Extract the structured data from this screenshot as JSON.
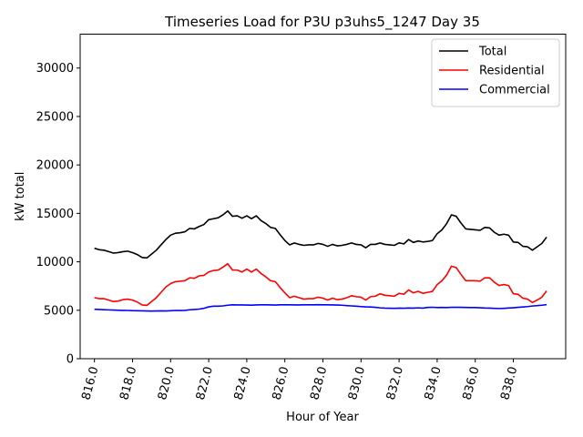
{
  "chart_data": {
    "type": "line",
    "title": "Timeseries Load for P3U p3uhs5_1247  Day 35",
    "xlabel": "Hour of Year",
    "ylabel": "kW total",
    "xlim": [
      815.25,
      840.75
    ],
    "ylim": [
      0,
      33500
    ],
    "xticks": [
      816,
      818,
      820,
      822,
      824,
      826,
      828,
      830,
      832,
      834,
      836,
      838
    ],
    "xtick_labels": [
      "816.0",
      "818.0",
      "820.0",
      "822.0",
      "824.0",
      "826.0",
      "828.0",
      "830.0",
      "832.0",
      "834.0",
      "836.0",
      "838.0"
    ],
    "yticks": [
      0,
      5000,
      10000,
      15000,
      20000,
      25000,
      30000
    ],
    "ytick_labels": [
      "0",
      "5000",
      "10000",
      "15000",
      "20000",
      "25000",
      "30000"
    ],
    "legend_position": "top-right",
    "x_start": 816,
    "x_step": 0.25,
    "series": [
      {
        "name": "Total",
        "color": "#000000",
        "values": [
          11400,
          11250,
          11200,
          11050,
          10900,
          10950,
          11050,
          11100,
          10950,
          10750,
          10450,
          10400,
          10800,
          11200,
          11750,
          12300,
          12750,
          12950,
          13000,
          13100,
          13450,
          13400,
          13650,
          13850,
          14350,
          14450,
          14550,
          14850,
          15250,
          14700,
          14750,
          14500,
          14750,
          14450,
          14750,
          14250,
          13950,
          13550,
          13450,
          12800,
          12200,
          11750,
          11950,
          11800,
          11700,
          11750,
          11750,
          11900,
          11800,
          11600,
          11800,
          11650,
          11700,
          11800,
          11950,
          11800,
          11750,
          11450,
          11800,
          11800,
          11950,
          11800,
          11750,
          11700,
          11950,
          11850,
          12300,
          12000,
          12150,
          12050,
          12100,
          12200,
          12900,
          13300,
          13950,
          14850,
          14700,
          14000,
          13400,
          13350,
          13300,
          13250,
          13550,
          13500,
          13050,
          12750,
          12850,
          12750,
          12050,
          12000,
          11600,
          11550,
          11200,
          11550,
          11900,
          12550
        ]
      },
      {
        "name": "Residential",
        "color": "#ff0000",
        "values": [
          6300,
          6200,
          6200,
          6050,
          5900,
          5950,
          6100,
          6150,
          6050,
          5850,
          5550,
          5500,
          5900,
          6300,
          6850,
          7400,
          7750,
          7950,
          8000,
          8050,
          8350,
          8300,
          8550,
          8600,
          8950,
          9100,
          9150,
          9450,
          9800,
          9150,
          9150,
          8950,
          9250,
          8950,
          9250,
          8800,
          8450,
          8050,
          7950,
          7350,
          6800,
          6300,
          6450,
          6300,
          6150,
          6200,
          6200,
          6350,
          6250,
          6050,
          6250,
          6100,
          6150,
          6300,
          6500,
          6400,
          6350,
          6050,
          6400,
          6450,
          6700,
          6550,
          6500,
          6450,
          6750,
          6650,
          7100,
          6800,
          6950,
          6750,
          6850,
          6950,
          7650,
          8050,
          8650,
          9550,
          9400,
          8700,
          8050,
          8050,
          8050,
          8000,
          8350,
          8350,
          7900,
          7550,
          7650,
          7550,
          6700,
          6650,
          6250,
          6150,
          5800,
          6050,
          6350,
          7000
        ]
      },
      {
        "name": "Commercial",
        "color": "#0000ff",
        "values": [
          5100,
          5080,
          5060,
          5040,
          5020,
          5000,
          4990,
          4980,
          4960,
          4950,
          4940,
          4930,
          4920,
          4930,
          4940,
          4930,
          4950,
          4980,
          4970,
          4990,
          5050,
          5080,
          5120,
          5200,
          5350,
          5420,
          5420,
          5450,
          5520,
          5560,
          5550,
          5550,
          5540,
          5530,
          5550,
          5560,
          5560,
          5550,
          5540,
          5560,
          5560,
          5560,
          5550,
          5550,
          5560,
          5560,
          5560,
          5570,
          5560,
          5560,
          5550,
          5540,
          5520,
          5480,
          5450,
          5420,
          5380,
          5350,
          5340,
          5300,
          5250,
          5220,
          5210,
          5200,
          5220,
          5210,
          5230,
          5220,
          5250,
          5220,
          5290,
          5310,
          5280,
          5290,
          5280,
          5300,
          5300,
          5300,
          5290,
          5280,
          5280,
          5260,
          5230,
          5220,
          5200,
          5180,
          5200,
          5230,
          5260,
          5300,
          5340,
          5380,
          5440,
          5480,
          5520,
          5580
        ]
      }
    ]
  }
}
